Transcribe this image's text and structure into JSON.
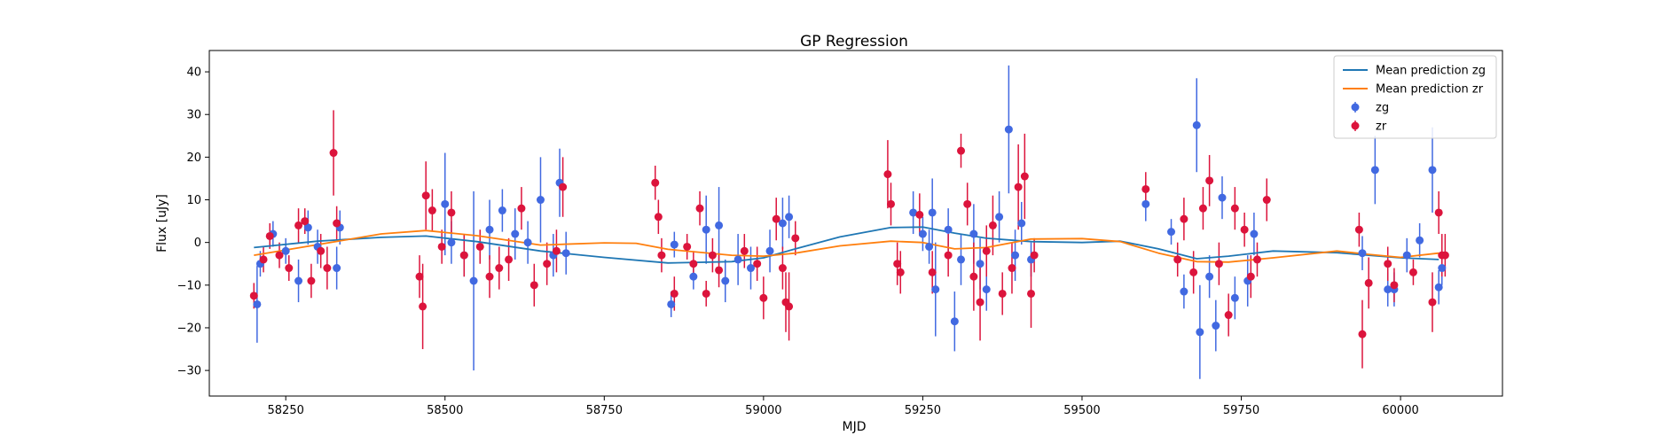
{
  "chart_data": {
    "type": "scatter",
    "title": "GP Regression",
    "xlabel": "MJD",
    "ylabel": "Flux [uJy]",
    "xlim": [
      58130,
      60160
    ],
    "ylim": [
      -36,
      45
    ],
    "xticks": [
      58250,
      58500,
      58750,
      59000,
      59250,
      59500,
      59750,
      60000
    ],
    "yticks": [
      -30,
      -20,
      -10,
      0,
      10,
      20,
      30,
      40
    ],
    "grid": false,
    "legend_position": "top-right",
    "lines": [
      {
        "name": "Mean prediction zg",
        "color": "#1f77b4",
        "x": [
          58200,
          58300,
          58400,
          58470,
          58550,
          58650,
          58750,
          58850,
          58950,
          59000,
          59050,
          59120,
          59200,
          59250,
          59300,
          59350,
          59420,
          59500,
          59560,
          59620,
          59680,
          59730,
          59800,
          59900,
          59950,
          60000,
          60060
        ],
        "y": [
          -1.2,
          0.3,
          1.2,
          1.5,
          0.2,
          -2.0,
          -3.5,
          -4.8,
          -4.5,
          -3.6,
          -1.5,
          1.3,
          3.5,
          3.6,
          2.2,
          1.0,
          0.2,
          0.0,
          0.3,
          -1.5,
          -3.8,
          -3.2,
          -2.0,
          -2.4,
          -3.0,
          -3.6,
          -4.0
        ]
      },
      {
        "name": "Mean prediction zr",
        "color": "#ff7f0e",
        "x": [
          58200,
          58300,
          58400,
          58470,
          58550,
          58650,
          58750,
          58800,
          58850,
          58950,
          59000,
          59050,
          59120,
          59200,
          59250,
          59300,
          59350,
          59420,
          59500,
          59560,
          59620,
          59680,
          59730,
          59800,
          59900,
          59950,
          60000,
          60060
        ],
        "y": [
          -3.0,
          -0.5,
          2.0,
          2.8,
          1.6,
          -0.6,
          -0.1,
          -0.2,
          -1.6,
          -3.0,
          -3.2,
          -2.5,
          -0.8,
          0.3,
          0.0,
          -1.5,
          -1.2,
          0.8,
          0.9,
          0.2,
          -2.5,
          -4.5,
          -4.6,
          -3.6,
          -2.0,
          -2.8,
          -3.5,
          -2.5
        ]
      }
    ],
    "series": [
      {
        "name": "zg",
        "color": "#4169e1",
        "points": [
          [
            58205,
            -14.5,
            9
          ],
          [
            58210,
            -5,
            3
          ],
          [
            58230,
            2,
            3
          ],
          [
            58250,
            -2,
            3
          ],
          [
            58270,
            -9,
            5
          ],
          [
            58285,
            3.5,
            4
          ],
          [
            58300,
            -1,
            4
          ],
          [
            58330,
            -6,
            5
          ],
          [
            58335,
            3.5,
            4
          ],
          [
            58500,
            9,
            12
          ],
          [
            58510,
            0,
            5
          ],
          [
            58530,
            -3,
            5
          ],
          [
            58545,
            -9,
            21
          ],
          [
            58570,
            3,
            7
          ],
          [
            58590,
            7.5,
            5
          ],
          [
            58610,
            2,
            6
          ],
          [
            58630,
            0,
            5
          ],
          [
            58650,
            10,
            10
          ],
          [
            58670,
            -3,
            5
          ],
          [
            58680,
            14,
            8
          ],
          [
            58690,
            -2.5,
            5
          ],
          [
            58855,
            -14.5,
            3
          ],
          [
            58860,
            -0.5,
            3
          ],
          [
            58890,
            -8,
            3
          ],
          [
            58910,
            3,
            8
          ],
          [
            58930,
            4,
            9
          ],
          [
            58940,
            -9,
            5
          ],
          [
            58960,
            -4,
            6
          ],
          [
            58980,
            -6,
            5
          ],
          [
            59010,
            -2,
            5
          ],
          [
            59030,
            4.5,
            6
          ],
          [
            59040,
            6,
            5
          ],
          [
            59235,
            7,
            5
          ],
          [
            59250,
            2,
            4
          ],
          [
            59260,
            -1,
            4
          ],
          [
            59265,
            7,
            8
          ],
          [
            59270,
            -11,
            11
          ],
          [
            59290,
            3,
            5
          ],
          [
            59300,
            -18.5,
            7
          ],
          [
            59310,
            -4,
            6
          ],
          [
            59330,
            2,
            7
          ],
          [
            59340,
            -5,
            6
          ],
          [
            59350,
            -11,
            5
          ],
          [
            59370,
            6,
            6
          ],
          [
            59385,
            26.5,
            15
          ],
          [
            59395,
            -3,
            6
          ],
          [
            59405,
            4.5,
            5
          ],
          [
            59420,
            -4,
            4
          ],
          [
            59600,
            9,
            4
          ],
          [
            59640,
            2.5,
            3
          ],
          [
            59660,
            -11.5,
            4
          ],
          [
            59680,
            27.5,
            11
          ],
          [
            59685,
            -21,
            11
          ],
          [
            59700,
            -8,
            5
          ],
          [
            59710,
            -19.5,
            6
          ],
          [
            59720,
            10.5,
            5
          ],
          [
            59740,
            -13,
            5
          ],
          [
            59760,
            -9,
            6
          ],
          [
            59770,
            2,
            5
          ],
          [
            59940,
            -2.5,
            4
          ],
          [
            59960,
            17,
            8
          ],
          [
            59980,
            -11,
            4
          ],
          [
            59990,
            -11,
            4
          ],
          [
            60010,
            -3,
            4
          ],
          [
            60030,
            0.5,
            4
          ],
          [
            60050,
            17,
            10
          ],
          [
            60060,
            -10.5,
            4
          ],
          [
            60065,
            -6,
            4
          ]
        ]
      },
      {
        "name": "zr",
        "color": "#dc143c",
        "points": [
          [
            58200,
            -12.5,
            3
          ],
          [
            58215,
            -4,
            3
          ],
          [
            58225,
            1.5,
            3
          ],
          [
            58240,
            -3,
            3
          ],
          [
            58255,
            -6,
            3
          ],
          [
            58270,
            4,
            4
          ],
          [
            58280,
            5,
            3
          ],
          [
            58290,
            -9,
            4
          ],
          [
            58305,
            -2,
            4
          ],
          [
            58315,
            -6,
            5
          ],
          [
            58325,
            21,
            10
          ],
          [
            58330,
            4.5,
            4
          ],
          [
            58460,
            -8,
            5
          ],
          [
            58465,
            -15,
            10
          ],
          [
            58470,
            11,
            8
          ],
          [
            58480,
            7.5,
            5
          ],
          [
            58495,
            -1,
            4
          ],
          [
            58510,
            7,
            5
          ],
          [
            58530,
            -3,
            5
          ],
          [
            58555,
            -1,
            4
          ],
          [
            58570,
            -8,
            5
          ],
          [
            58585,
            -6,
            5
          ],
          [
            58600,
            -4,
            5
          ],
          [
            58620,
            8,
            5
          ],
          [
            58640,
            -10,
            5
          ],
          [
            58660,
            -5,
            5
          ],
          [
            58675,
            -2,
            5
          ],
          [
            58685,
            13,
            7
          ],
          [
            58830,
            14,
            4
          ],
          [
            58835,
            6,
            4
          ],
          [
            58840,
            -3,
            4
          ],
          [
            58860,
            -12,
            4
          ],
          [
            58880,
            -1,
            3
          ],
          [
            58890,
            -5,
            3
          ],
          [
            58900,
            8,
            4
          ],
          [
            58910,
            -12,
            3
          ],
          [
            58920,
            -3,
            4
          ],
          [
            58930,
            -6.5,
            4
          ],
          [
            58970,
            -2,
            4
          ],
          [
            58990,
            -5,
            4
          ],
          [
            59000,
            -13,
            5
          ],
          [
            59020,
            5.5,
            5
          ],
          [
            59030,
            -6,
            5
          ],
          [
            59035,
            -14,
            7
          ],
          [
            59040,
            -15,
            8
          ],
          [
            59050,
            1,
            4
          ],
          [
            59195,
            16,
            8
          ],
          [
            59200,
            9,
            5
          ],
          [
            59210,
            -5,
            5
          ],
          [
            59215,
            -7,
            5
          ],
          [
            59245,
            6.5,
            5
          ],
          [
            59265,
            -7,
            5
          ],
          [
            59290,
            -3,
            5
          ],
          [
            59310,
            21.5,
            4
          ],
          [
            59320,
            9,
            5
          ],
          [
            59330,
            -8,
            8
          ],
          [
            59340,
            -14,
            9
          ],
          [
            59350,
            -2,
            6
          ],
          [
            59360,
            4,
            7
          ],
          [
            59375,
            -12,
            5
          ],
          [
            59390,
            -6,
            6
          ],
          [
            59400,
            13,
            10
          ],
          [
            59410,
            15.5,
            10
          ],
          [
            59420,
            -12,
            8
          ],
          [
            59425,
            -3,
            4
          ],
          [
            59600,
            12.5,
            4
          ],
          [
            59650,
            -4,
            4
          ],
          [
            59660,
            5.5,
            5
          ],
          [
            59675,
            -7,
            5
          ],
          [
            59690,
            8,
            5
          ],
          [
            59700,
            14.5,
            6
          ],
          [
            59715,
            -5,
            5
          ],
          [
            59730,
            -17,
            5
          ],
          [
            59740,
            8,
            5
          ],
          [
            59755,
            3,
            4
          ],
          [
            59765,
            -8,
            5
          ],
          [
            59775,
            -4,
            4
          ],
          [
            59790,
            10,
            5
          ],
          [
            59935,
            3,
            4
          ],
          [
            59940,
            -21.5,
            8
          ],
          [
            59950,
            -9.5,
            6
          ],
          [
            59980,
            -5,
            4
          ],
          [
            59990,
            -10,
            4
          ],
          [
            60020,
            -7,
            3
          ],
          [
            60050,
            -14,
            7
          ],
          [
            60060,
            7,
            5
          ],
          [
            60065,
            -3,
            5
          ],
          [
            60070,
            -3,
            5
          ]
        ]
      }
    ]
  }
}
